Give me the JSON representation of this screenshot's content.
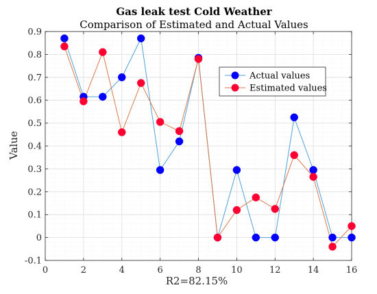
{
  "chart_data": {
    "type": "line",
    "title": "Gas leak test Cold Weather",
    "subtitle": "Comparison of Estimated and Actual Values",
    "xlabel": "R2=82.15%",
    "ylabel": "Value",
    "xlim": [
      0,
      16
    ],
    "ylim": [
      -0.1,
      0.9
    ],
    "x_ticks": [
      0,
      2,
      4,
      6,
      8,
      10,
      12,
      14,
      16
    ],
    "y_ticks": [
      -0.1,
      0,
      0.1,
      0.2,
      0.3,
      0.4,
      0.5,
      0.6,
      0.7,
      0.8,
      0.9
    ],
    "x_tick_labels": [
      "0",
      "2",
      "4",
      "6",
      "8",
      "10",
      "12",
      "14",
      "16"
    ],
    "y_tick_labels": [
      "-0.1",
      "0",
      "0.1",
      "0.2",
      "0.3",
      "0.4",
      "0.5",
      "0.6",
      "0.7",
      "0.8",
      "0.9"
    ],
    "grid": true,
    "legend_position": "top-right",
    "x": [
      1,
      2,
      3,
      4,
      5,
      6,
      7,
      8,
      9,
      10,
      11,
      12,
      13,
      14,
      15,
      16
    ],
    "series": [
      {
        "name": "Actual values",
        "color": "#0000ff",
        "line_color": "#4d9fd8",
        "values": [
          0.87,
          0.615,
          0.615,
          0.7,
          0.87,
          0.295,
          0.42,
          0.785,
          0.0,
          0.295,
          0.0,
          0.0,
          0.525,
          0.295,
          0.0,
          0.0
        ]
      },
      {
        "name": "Estimated values",
        "color": "#ff0033",
        "line_color": "#d9784a",
        "values": [
          0.835,
          0.595,
          0.81,
          0.46,
          0.675,
          0.505,
          0.465,
          0.78,
          0.0,
          0.12,
          0.175,
          0.125,
          0.36,
          0.265,
          -0.04,
          0.05
        ]
      }
    ]
  }
}
